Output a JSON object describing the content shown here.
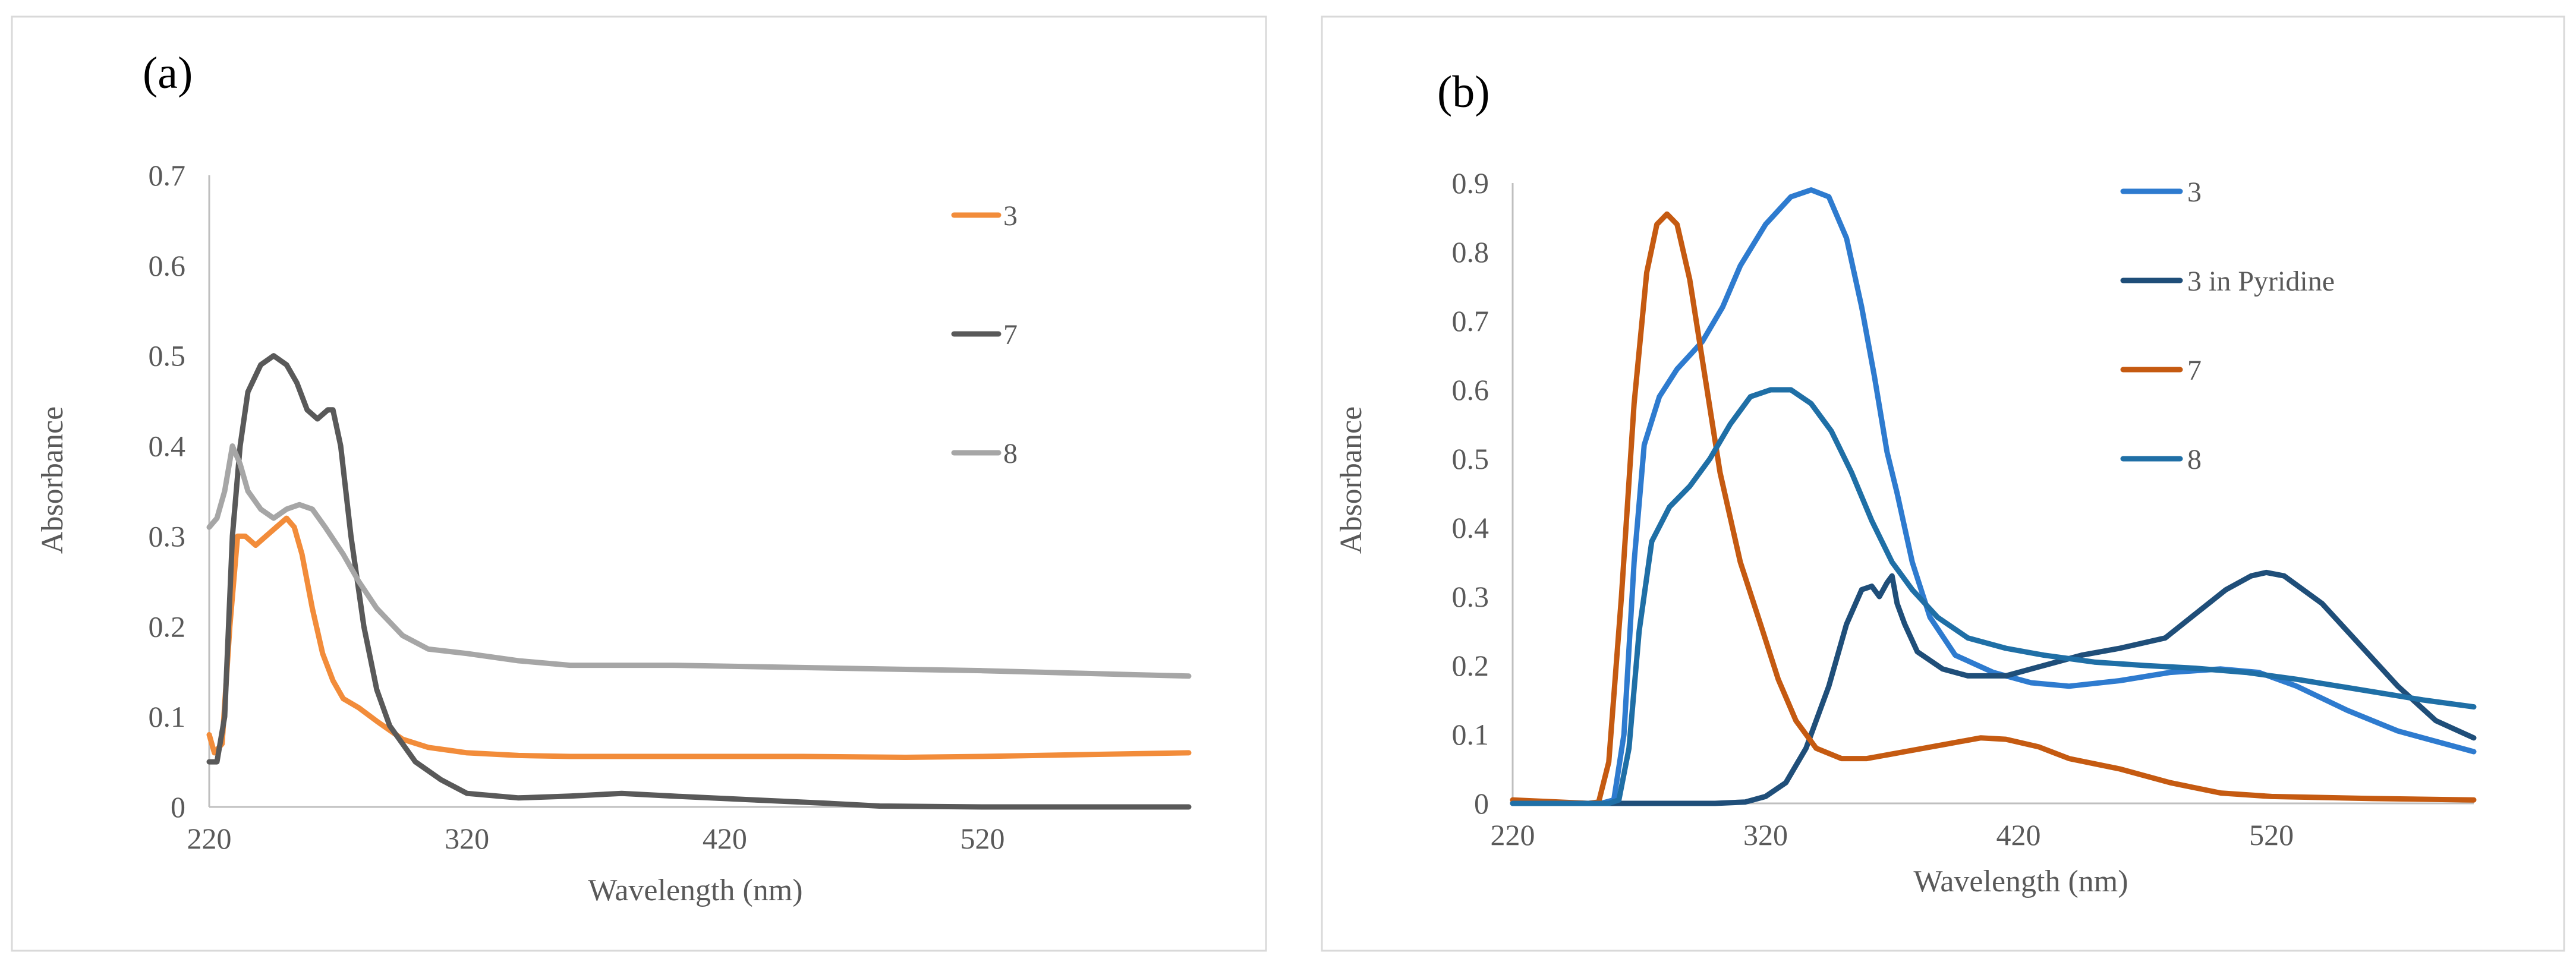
{
  "chart_data": [
    {
      "type": "line",
      "panel_label": "(a)",
      "xlabel": "Wavelength (nm)",
      "ylabel": "Absorbance",
      "xlim": [
        220,
        600
      ],
      "ylim": [
        0,
        0.7
      ],
      "x_ticks": [
        220,
        320,
        420,
        520
      ],
      "y_ticks": [
        0,
        0.1,
        0.2,
        0.3,
        0.4,
        0.5,
        0.6,
        0.7
      ],
      "y_tick_labels": [
        "0",
        "0.1",
        "0.2",
        "0.3",
        "0.4",
        "0.5",
        "0.6",
        "0.7"
      ],
      "grid": false,
      "legend_position": "right",
      "series": [
        {
          "name": "3",
          "color": "#F28C3A",
          "points": [
            [
              220,
              0.08
            ],
            [
              222,
              0.06
            ],
            [
              225,
              0.07
            ],
            [
              228,
              0.2
            ],
            [
              231,
              0.3
            ],
            [
              234,
              0.3
            ],
            [
              238,
              0.29
            ],
            [
              242,
              0.3
            ],
            [
              246,
              0.31
            ],
            [
              250,
              0.32
            ],
            [
              253,
              0.31
            ],
            [
              256,
              0.28
            ],
            [
              260,
              0.22
            ],
            [
              264,
              0.17
            ],
            [
              268,
              0.14
            ],
            [
              272,
              0.12
            ],
            [
              278,
              0.11
            ],
            [
              285,
              0.095
            ],
            [
              295,
              0.075
            ],
            [
              305,
              0.066
            ],
            [
              320,
              0.06
            ],
            [
              340,
              0.057
            ],
            [
              360,
              0.056
            ],
            [
              400,
              0.056
            ],
            [
              450,
              0.056
            ],
            [
              490,
              0.055
            ],
            [
              520,
              0.056
            ],
            [
              560,
              0.058
            ],
            [
              600,
              0.06
            ]
          ]
        },
        {
          "name": "7",
          "color": "#595959",
          "points": [
            [
              220,
              0.05
            ],
            [
              223,
              0.05
            ],
            [
              226,
              0.1
            ],
            [
              229,
              0.3
            ],
            [
              232,
              0.4
            ],
            [
              235,
              0.46
            ],
            [
              240,
              0.49
            ],
            [
              245,
              0.5
            ],
            [
              250,
              0.49
            ],
            [
              254,
              0.47
            ],
            [
              258,
              0.44
            ],
            [
              262,
              0.43
            ],
            [
              266,
              0.44
            ],
            [
              268,
              0.44
            ],
            [
              271,
              0.4
            ],
            [
              275,
              0.3
            ],
            [
              280,
              0.2
            ],
            [
              285,
              0.13
            ],
            [
              290,
              0.09
            ],
            [
              300,
              0.05
            ],
            [
              310,
              0.03
            ],
            [
              320,
              0.015
            ],
            [
              340,
              0.01
            ],
            [
              360,
              0.012
            ],
            [
              380,
              0.015
            ],
            [
              400,
              0.012
            ],
            [
              430,
              0.008
            ],
            [
              460,
              0.004
            ],
            [
              480,
              0.001
            ],
            [
              520,
              0
            ],
            [
              600,
              0
            ]
          ]
        },
        {
          "name": "8",
          "color": "#A6A6A6",
          "points": [
            [
              220,
              0.31
            ],
            [
              223,
              0.32
            ],
            [
              226,
              0.35
            ],
            [
              229,
              0.4
            ],
            [
              232,
              0.38
            ],
            [
              235,
              0.35
            ],
            [
              240,
              0.33
            ],
            [
              245,
              0.32
            ],
            [
              250,
              0.33
            ],
            [
              255,
              0.335
            ],
            [
              260,
              0.33
            ],
            [
              265,
              0.31
            ],
            [
              272,
              0.28
            ],
            [
              278,
              0.25
            ],
            [
              285,
              0.22
            ],
            [
              295,
              0.19
            ],
            [
              305,
              0.175
            ],
            [
              320,
              0.17
            ],
            [
              340,
              0.162
            ],
            [
              360,
              0.157
            ],
            [
              400,
              0.157
            ],
            [
              440,
              0.155
            ],
            [
              480,
              0.153
            ],
            [
              520,
              0.151
            ],
            [
              560,
              0.148
            ],
            [
              600,
              0.145
            ]
          ]
        }
      ]
    },
    {
      "type": "line",
      "panel_label": "(b)",
      "xlabel": "Wavelength (nm)",
      "ylabel": "Absorbance",
      "xlim": [
        220,
        600
      ],
      "ylim": [
        0,
        0.9
      ],
      "x_ticks": [
        220,
        320,
        420,
        520
      ],
      "y_ticks": [
        0,
        0.1,
        0.2,
        0.3,
        0.4,
        0.5,
        0.6,
        0.7,
        0.8,
        0.9
      ],
      "y_tick_labels": [
        "0",
        "0.1",
        "0.2",
        "0.3",
        "0.4",
        "0.5",
        "0.6",
        "0.7",
        "0.8",
        "0.9"
      ],
      "grid": false,
      "legend_position": "right",
      "series": [
        {
          "name": "3",
          "color": "#2E7BCF",
          "points": [
            [
              220,
              0
            ],
            [
              255,
              0
            ],
            [
              260,
              0.005
            ],
            [
              264,
              0.1
            ],
            [
              268,
              0.35
            ],
            [
              272,
              0.52
            ],
            [
              278,
              0.59
            ],
            [
              285,
              0.63
            ],
            [
              295,
              0.67
            ],
            [
              303,
              0.72
            ],
            [
              310,
              0.78
            ],
            [
              320,
              0.84
            ],
            [
              330,
              0.88
            ],
            [
              338,
              0.89
            ],
            [
              345,
              0.88
            ],
            [
              352,
              0.82
            ],
            [
              358,
              0.72
            ],
            [
              363,
              0.62
            ],
            [
              368,
              0.51
            ],
            [
              372,
              0.45
            ],
            [
              378,
              0.35
            ],
            [
              385,
              0.27
            ],
            [
              395,
              0.215
            ],
            [
              410,
              0.19
            ],
            [
              425,
              0.175
            ],
            [
              440,
              0.17
            ],
            [
              460,
              0.178
            ],
            [
              480,
              0.19
            ],
            [
              500,
              0.195
            ],
            [
              515,
              0.19
            ],
            [
              530,
              0.17
            ],
            [
              550,
              0.135
            ],
            [
              570,
              0.105
            ],
            [
              590,
              0.085
            ],
            [
              600,
              0.075
            ]
          ]
        },
        {
          "name": "3 in Pyridine",
          "color": "#1F4E79",
          "points": [
            [
              220,
              0
            ],
            [
              300,
              0
            ],
            [
              312,
              0.002
            ],
            [
              320,
              0.01
            ],
            [
              328,
              0.03
            ],
            [
              336,
              0.08
            ],
            [
              345,
              0.17
            ],
            [
              352,
              0.26
            ],
            [
              358,
              0.31
            ],
            [
              362,
              0.315
            ],
            [
              365,
              0.3
            ],
            [
              368,
              0.32
            ],
            [
              370,
              0.33
            ],
            [
              372,
              0.29
            ],
            [
              375,
              0.26
            ],
            [
              380,
              0.22
            ],
            [
              390,
              0.195
            ],
            [
              400,
              0.185
            ],
            [
              415,
              0.185
            ],
            [
              430,
              0.2
            ],
            [
              445,
              0.215
            ],
            [
              460,
              0.225
            ],
            [
              478,
              0.24
            ],
            [
              490,
              0.275
            ],
            [
              502,
              0.31
            ],
            [
              512,
              0.33
            ],
            [
              518,
              0.335
            ],
            [
              525,
              0.33
            ],
            [
              540,
              0.29
            ],
            [
              555,
              0.23
            ],
            [
              570,
              0.17
            ],
            [
              585,
              0.12
            ],
            [
              600,
              0.095
            ]
          ]
        },
        {
          "name": "7",
          "color": "#C55A11",
          "points": [
            [
              220,
              0.005
            ],
            [
              250,
              0
            ],
            [
              254,
              0.002
            ],
            [
              258,
              0.06
            ],
            [
              263,
              0.3
            ],
            [
              268,
              0.58
            ],
            [
              273,
              0.77
            ],
            [
              277,
              0.84
            ],
            [
              281,
              0.855
            ],
            [
              285,
              0.84
            ],
            [
              290,
              0.76
            ],
            [
              296,
              0.62
            ],
            [
              302,
              0.48
            ],
            [
              310,
              0.35
            ],
            [
              318,
              0.26
            ],
            [
              325,
              0.18
            ],
            [
              332,
              0.12
            ],
            [
              340,
              0.08
            ],
            [
              350,
              0.065
            ],
            [
              360,
              0.065
            ],
            [
              375,
              0.075
            ],
            [
              390,
              0.085
            ],
            [
              405,
              0.095
            ],
            [
              415,
              0.093
            ],
            [
              428,
              0.082
            ],
            [
              440,
              0.065
            ],
            [
              460,
              0.05
            ],
            [
              480,
              0.03
            ],
            [
              500,
              0.015
            ],
            [
              520,
              0.01
            ],
            [
              560,
              0.007
            ],
            [
              600,
              0.005
            ]
          ]
        },
        {
          "name": "8",
          "color": "#1F6FA6",
          "points": [
            [
              220,
              0
            ],
            [
              258,
              0
            ],
            [
              262,
              0.005
            ],
            [
              266,
              0.08
            ],
            [
              270,
              0.25
            ],
            [
              275,
              0.38
            ],
            [
              282,
              0.43
            ],
            [
              290,
              0.46
            ],
            [
              298,
              0.5
            ],
            [
              306,
              0.55
            ],
            [
              314,
              0.59
            ],
            [
              322,
              0.6
            ],
            [
              330,
              0.6
            ],
            [
              338,
              0.58
            ],
            [
              346,
              0.54
            ],
            [
              354,
              0.48
            ],
            [
              362,
              0.41
            ],
            [
              370,
              0.35
            ],
            [
              378,
              0.31
            ],
            [
              388,
              0.27
            ],
            [
              400,
              0.24
            ],
            [
              415,
              0.225
            ],
            [
              430,
              0.215
            ],
            [
              450,
              0.205
            ],
            [
              470,
              0.2
            ],
            [
              490,
              0.196
            ],
            [
              510,
              0.19
            ],
            [
              530,
              0.18
            ],
            [
              555,
              0.165
            ],
            [
              580,
              0.15
            ],
            [
              600,
              0.14
            ]
          ]
        }
      ]
    }
  ]
}
